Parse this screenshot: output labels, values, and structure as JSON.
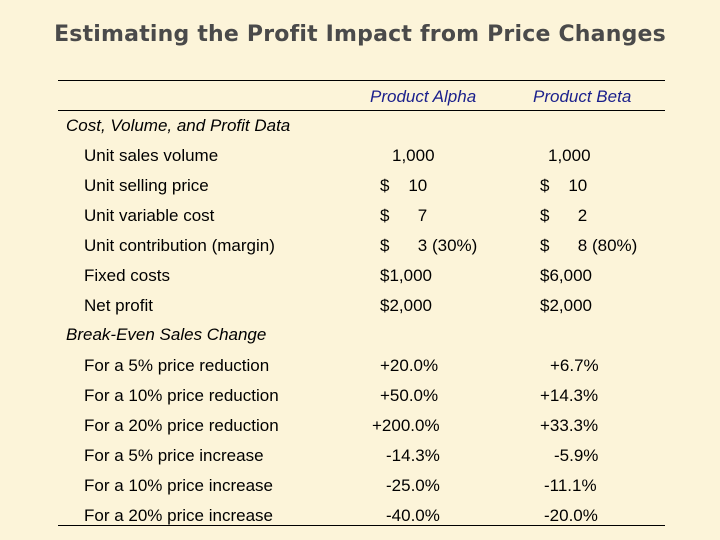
{
  "title": "Estimating the Profit Impact from Price Changes",
  "columns": {
    "alpha": "Product Alpha",
    "beta": "Product Beta"
  },
  "sections": {
    "cvp": "Cost, Volume, and Profit Data",
    "breakeven": "Break-Even Sales Change"
  },
  "cvp_rows": [
    {
      "label": "Unit sales volume",
      "alpha": "1,000",
      "beta": "1,000"
    },
    {
      "label": "Unit selling price",
      "alpha": "$    10",
      "beta": "$    10"
    },
    {
      "label": "Unit variable cost",
      "alpha": "$      7",
      "beta": "$      2"
    },
    {
      "label": "Unit contribution (margin)",
      "alpha": "$      3 (30%)",
      "beta": "$      8 (80%)"
    },
    {
      "label": "Fixed costs",
      "alpha": "$1,000",
      "beta": "$6,000"
    },
    {
      "label": "Net profit",
      "alpha": "$2,000",
      "beta": "$2,000"
    }
  ],
  "breakeven_rows": [
    {
      "label": "For a 5% price reduction",
      "alpha": "+20.0%",
      "beta": "+6.7%"
    },
    {
      "label": "For a 10% price reduction",
      "alpha": "+50.0%",
      "beta": "+14.3%"
    },
    {
      "label": "For a 20% price reduction",
      "alpha": "+200.0%",
      "beta": "+33.3%"
    },
    {
      "label": "For a 5% price increase",
      "alpha": "-14.3%",
      "beta": "-5.9%"
    },
    {
      "label": "For a 10% price increase",
      "alpha": "-25.0%",
      "beta": "-11.1%"
    },
    {
      "label": "For a 20% price increase",
      "alpha": "-40.0%",
      "beta": "-20.0%"
    }
  ]
}
